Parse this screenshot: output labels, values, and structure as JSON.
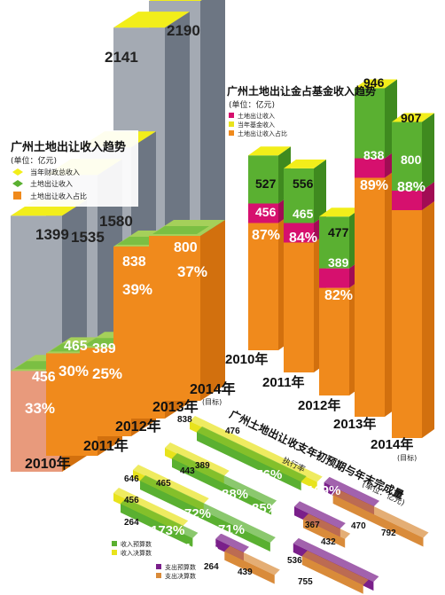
{
  "colors": {
    "gray_side": "#6d7683",
    "gray_front": "#a4aab3",
    "gray_top": "#cfd3d8",
    "yellow_top": "#f2ee1a",
    "yellow": "#e8e31c",
    "orange": "#f08a1c",
    "orange_side": "#d2700e",
    "salmon": "#e89a7c",
    "green": "#5ab031",
    "green_light": "#a5d05a",
    "magenta": "#d6106e",
    "purple": "#7a1f8a",
    "tan": "#d98b3a"
  },
  "chart_data": [
    {
      "type": "bar",
      "title": "广州土地出让收入趋势",
      "subtitle": "(单位：亿元)",
      "legend": [
        "当年财政总收入",
        "土地出让收入",
        "土地出让收入占比"
      ],
      "legend_placement": "left",
      "categories": [
        "2010年",
        "2011年",
        "2012年",
        "2013年",
        "2014年"
      ],
      "category_notes": [
        "",
        "",
        "",
        "",
        "(目标)"
      ],
      "series": [
        {
          "name": "当年财政总收入",
          "values": [
            1399,
            1535,
            1580,
            2141,
            2190
          ]
        },
        {
          "name": "土地出让收入",
          "values": [
            456,
            465,
            389,
            838,
            800
          ]
        },
        {
          "name": "土地出让收入占比",
          "values": [
            33,
            30,
            25,
            39,
            37
          ],
          "value_suffix": "%"
        }
      ]
    },
    {
      "type": "bar",
      "title": "广州土地出让金占基金收入趋势",
      "subtitle": "(单位：亿元)",
      "legend": [
        "土地出让收入",
        "当年基金收入",
        "土地出让收入占比"
      ],
      "legend_placement": "top-right",
      "categories": [
        "2010年",
        "2011年",
        "2012年",
        "2013年",
        "2014年"
      ],
      "category_notes": [
        "",
        "",
        "",
        "",
        "(目标)"
      ],
      "series": [
        {
          "name": "土地出让收入",
          "values": [
            456,
            465,
            389,
            838,
            800
          ]
        },
        {
          "name": "当年基金收入",
          "values": [
            527,
            556,
            477,
            946,
            907
          ]
        },
        {
          "name": "土地出让收入占比",
          "values": [
            87,
            84,
            82,
            89,
            88
          ],
          "value_suffix": "%"
        }
      ]
    },
    {
      "type": "bar",
      "title": "广州土地出让收支年初预期与年末完成量",
      "subtitle": "(单位：亿元)",
      "note": "执行率",
      "legend": [
        "收入预算数",
        "收入决算数",
        "支出预算数",
        "支出决算数"
      ],
      "legend_placement": "bottom-left",
      "groups": [
        {
          "year": "2013",
          "income_budget": 476,
          "income_final": 838,
          "income_rate": "176%",
          "expense_budget": 470,
          "expense_final": 792,
          "expense_rate": "169%"
        },
        {
          "year": "2012",
          "income_budget": 443,
          "income_final": 389,
          "income_rate": "88%",
          "expense_budget": 432,
          "expense_final": 367,
          "expense_rate": "85%"
        },
        {
          "year": "2011",
          "income_budget": 646,
          "income_final": 465,
          "income_rate": "72%",
          "expense_budget": 755,
          "expense_final": 536,
          "expense_rate": "71%"
        },
        {
          "year": "2010",
          "income_budget": 264,
          "income_final": 456,
          "income_rate": "173%",
          "expense_budget": 264,
          "expense_final": 439,
          "expense_rate": "166%"
        }
      ]
    }
  ]
}
